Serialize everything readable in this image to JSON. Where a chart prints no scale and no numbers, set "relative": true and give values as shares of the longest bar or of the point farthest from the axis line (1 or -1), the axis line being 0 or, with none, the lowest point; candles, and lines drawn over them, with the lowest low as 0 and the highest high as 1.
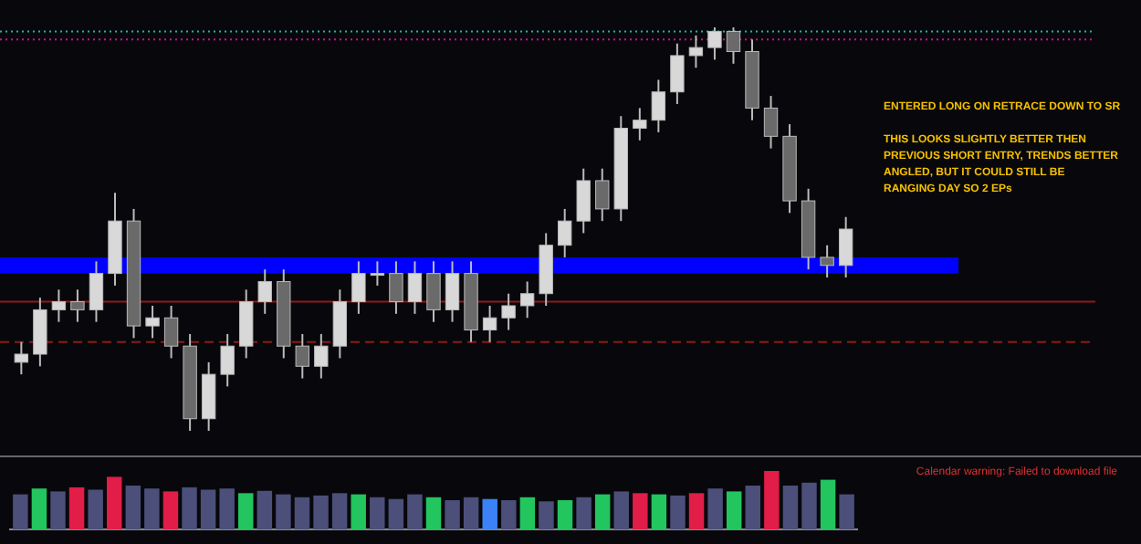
{
  "chart_data": [
    {
      "type": "candlestick",
      "relative": true,
      "categories": [
        null,
        null,
        null,
        null,
        null,
        null,
        null,
        null,
        null,
        null,
        null,
        null,
        null,
        null,
        null,
        null,
        null,
        null,
        null,
        null,
        null,
        null,
        null,
        null,
        null,
        null,
        null,
        null,
        null,
        null,
        null,
        null,
        null,
        null,
        null,
        null,
        null,
        null,
        null,
        null,
        null,
        null,
        null,
        null,
        null
      ],
      "ohlc": [
        [
          0.17,
          0.22,
          0.14,
          0.19
        ],
        [
          0.19,
          0.33,
          0.16,
          0.3
        ],
        [
          0.3,
          0.35,
          0.27,
          0.32
        ],
        [
          0.32,
          0.35,
          0.27,
          0.3
        ],
        [
          0.3,
          0.42,
          0.27,
          0.39
        ],
        [
          0.39,
          0.59,
          0.36,
          0.52
        ],
        [
          0.52,
          0.55,
          0.23,
          0.26
        ],
        [
          0.26,
          0.31,
          0.23,
          0.28
        ],
        [
          0.28,
          0.31,
          0.18,
          0.21
        ],
        [
          0.21,
          0.24,
          0.0,
          0.03
        ],
        [
          0.03,
          0.17,
          0.0,
          0.14
        ],
        [
          0.14,
          0.24,
          0.11,
          0.21
        ],
        [
          0.21,
          0.35,
          0.18,
          0.32
        ],
        [
          0.32,
          0.4,
          0.29,
          0.37
        ],
        [
          0.37,
          0.4,
          0.18,
          0.21
        ],
        [
          0.21,
          0.24,
          0.13,
          0.16
        ],
        [
          0.16,
          0.24,
          0.13,
          0.21
        ],
        [
          0.21,
          0.35,
          0.18,
          0.32
        ],
        [
          0.32,
          0.42,
          0.29,
          0.39
        ],
        [
          0.39,
          0.42,
          0.36,
          0.39
        ],
        [
          0.39,
          0.42,
          0.29,
          0.32
        ],
        [
          0.32,
          0.42,
          0.29,
          0.39
        ],
        [
          0.39,
          0.42,
          0.27,
          0.3
        ],
        [
          0.3,
          0.42,
          0.27,
          0.39
        ],
        [
          0.39,
          0.42,
          0.22,
          0.25
        ],
        [
          0.25,
          0.31,
          0.22,
          0.28
        ],
        [
          0.28,
          0.34,
          0.25,
          0.31
        ],
        [
          0.31,
          0.37,
          0.28,
          0.34
        ],
        [
          0.34,
          0.49,
          0.31,
          0.46
        ],
        [
          0.46,
          0.55,
          0.43,
          0.52
        ],
        [
          0.52,
          0.65,
          0.49,
          0.62
        ],
        [
          0.62,
          0.65,
          0.52,
          0.55
        ],
        [
          0.55,
          0.78,
          0.52,
          0.75
        ],
        [
          0.75,
          0.8,
          0.72,
          0.77
        ],
        [
          0.77,
          0.87,
          0.74,
          0.84
        ],
        [
          0.84,
          0.96,
          0.81,
          0.93
        ],
        [
          0.93,
          0.98,
          0.9,
          0.95
        ],
        [
          0.95,
          1.0,
          0.92,
          0.99
        ],
        [
          0.99,
          1.0,
          0.91,
          0.94
        ],
        [
          0.94,
          0.97,
          0.77,
          0.8
        ],
        [
          0.8,
          0.83,
          0.7,
          0.73
        ],
        [
          0.73,
          0.76,
          0.54,
          0.57
        ],
        [
          0.57,
          0.6,
          0.4,
          0.43
        ],
        [
          0.43,
          0.46,
          0.38,
          0.41
        ],
        [
          0.41,
          0.53,
          0.38,
          0.5
        ]
      ],
      "bands": [
        {
          "axis": "y",
          "from": 0.39,
          "to": 0.43,
          "color": "#0000ff"
        }
      ],
      "ref_lines": [
        {
          "axis": "y",
          "value": 0.32,
          "color": "#8b1a1a",
          "line_style": "solid"
        },
        {
          "axis": "y",
          "value": 0.22,
          "color": "#8b1a1a",
          "line_style": "dashed"
        },
        {
          "axis": "y",
          "value": 0.99,
          "color": "#20b2aa",
          "line_style": "dotted"
        },
        {
          "axis": "y",
          "value": 0.97,
          "color": "#c71585",
          "line_style": "dotted"
        }
      ],
      "annotations": [
        "ENTERED LONG ON RETRACE DOWN TO SR",
        "THIS LOOKS SLIGHTLY BETTER THEN PREVIOUS SHORT ENTRY, TRENDS BETTER ANGLED, BUT IT COULD STILL BE RANGING DAY SO 2 EPs"
      ]
    },
    {
      "type": "bar",
      "relative": true,
      "categories": [
        null,
        null,
        null,
        null,
        null,
        null,
        null,
        null,
        null,
        null,
        null,
        null,
        null,
        null,
        null,
        null,
        null,
        null,
        null,
        null,
        null,
        null,
        null,
        null,
        null,
        null,
        null,
        null,
        null,
        null,
        null,
        null,
        null,
        null,
        null,
        null,
        null,
        null,
        null,
        null,
        null,
        null,
        null,
        null,
        null
      ],
      "values": [
        0.6,
        0.7,
        0.65,
        0.72,
        0.68,
        0.9,
        0.75,
        0.7,
        0.65,
        0.72,
        0.68,
        0.7,
        0.62,
        0.66,
        0.6,
        0.55,
        0.58,
        0.62,
        0.6,
        0.55,
        0.52,
        0.6,
        0.55,
        0.5,
        0.55,
        0.52,
        0.5,
        0.55,
        0.48,
        0.5,
        0.55,
        0.6,
        0.65,
        0.62,
        0.6,
        0.58,
        0.62,
        0.7,
        0.65,
        0.75,
        1.0,
        0.75,
        0.8,
        0.85,
        0.6
      ],
      "colors": [
        "#4b4f7a",
        "#22c55e",
        "#4b4f7a",
        "#e11d48",
        "#4b4f7a",
        "#e11d48",
        "#4b4f7a",
        "#4b4f7a",
        "#e11d48",
        "#4b4f7a",
        "#4b4f7a",
        "#4b4f7a",
        "#22c55e",
        "#4b4f7a",
        "#4b4f7a",
        "#4b4f7a",
        "#4b4f7a",
        "#4b4f7a",
        "#22c55e",
        "#4b4f7a",
        "#4b4f7a",
        "#4b4f7a",
        "#22c55e",
        "#4b4f7a",
        "#4b4f7a",
        "#3b82f6",
        "#4b4f7a",
        "#22c55e",
        "#4b4f7a",
        "#22c55e",
        "#4b4f7a",
        "#22c55e",
        "#4b4f7a",
        "#e11d48",
        "#22c55e",
        "#4b4f7a",
        "#e11d48",
        "#4b4f7a",
        "#22c55e",
        "#4b4f7a",
        "#e11d48",
        "#4b4f7a",
        "#4b4f7a",
        "#22c55e",
        "#4b4f7a"
      ],
      "annotations": [
        "Calendar warning: Failed to download file"
      ]
    }
  ]
}
